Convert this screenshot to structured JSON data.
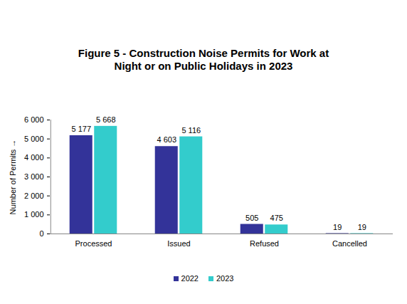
{
  "chart_data": {
    "type": "bar",
    "title": "Figure 5 - Construction Noise Permits for Work at Night or on Public Holidays in 2023",
    "y_label": "Number of Permits",
    "categories": [
      "Processed",
      "Issued",
      "Refused",
      "Cancelled"
    ],
    "series": [
      {
        "name": "2022",
        "color": "#333399",
        "values": [
          5177,
          4603,
          505,
          19
        ],
        "value_labels": [
          "5 177",
          "4 603",
          "505",
          "19"
        ]
      },
      {
        "name": "2023",
        "color": "#33CCCC",
        "values": [
          5668,
          5116,
          475,
          19
        ],
        "value_labels": [
          "5 668",
          "5 116",
          "475",
          "19"
        ]
      }
    ],
    "ylim": [
      0,
      6000
    ],
    "yticks": [
      0,
      {
        "value": 1000,
        "label": "1 000"
      },
      {
        "value": 2000,
        "label": "2 000"
      },
      {
        "value": 3000,
        "label": "3 000"
      },
      {
        "value": 4000,
        "label": "4 000"
      },
      {
        "value": 5000,
        "label": "5 000"
      },
      {
        "value": 6000,
        "label": "6 000"
      }
    ],
    "grid": false,
    "legend": "bottom",
    "data_labels": true
  }
}
